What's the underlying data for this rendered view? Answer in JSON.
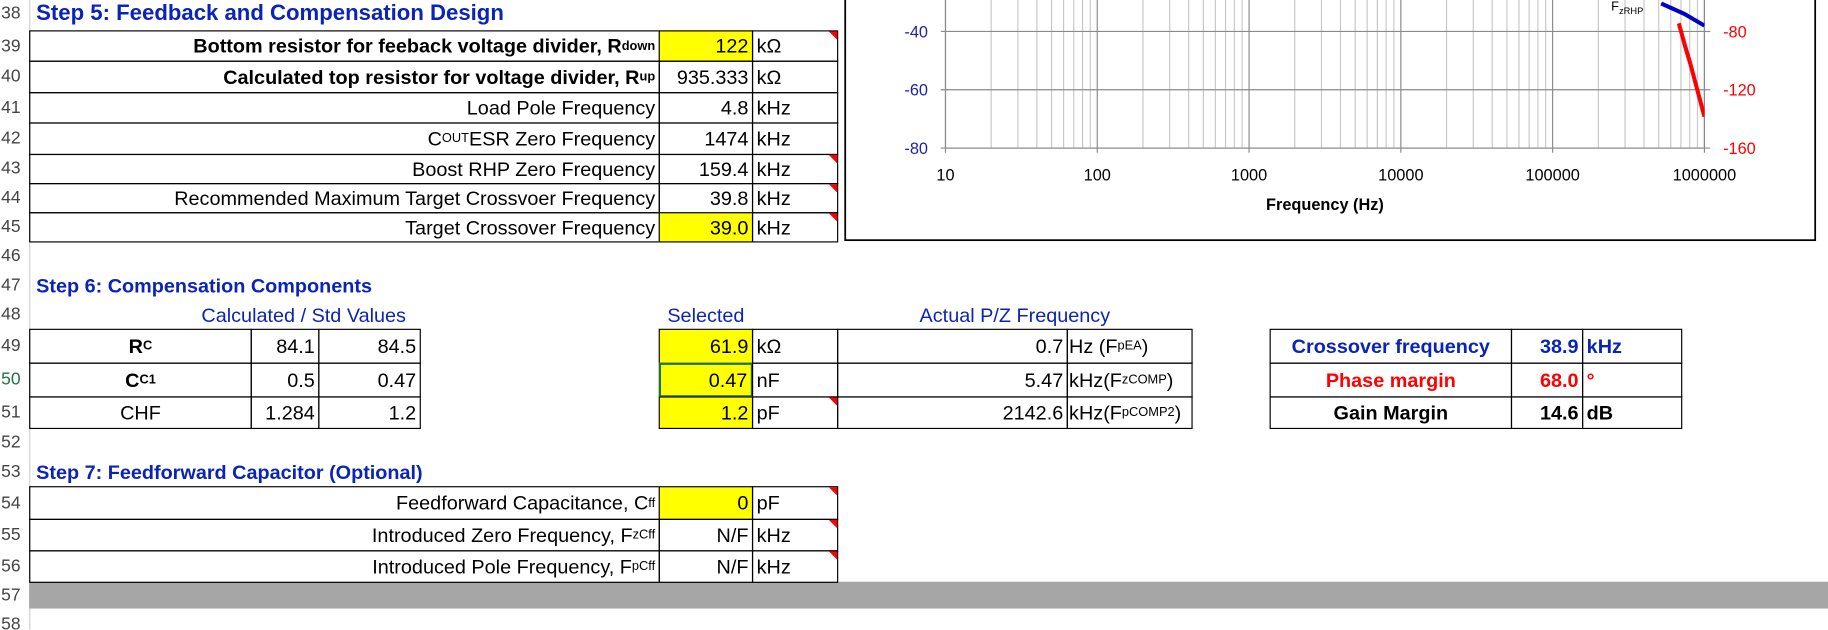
{
  "row_numbers": [
    "38",
    "39",
    "40",
    "41",
    "42",
    "43",
    "44",
    "45",
    "46",
    "47",
    "48",
    "49",
    "50",
    "51",
    "52",
    "53",
    "54",
    "55",
    "56",
    "57",
    "58"
  ],
  "step5": {
    "title": "Step 5: Feedback and Compensation Design",
    "rows": [
      {
        "label": [
          "Bottom resistor for feeback voltage divider, R",
          "down"
        ],
        "value": "122",
        "unit": "kΩ"
      },
      {
        "label": [
          "Calculated top resistor for voltage divider,  R",
          "up"
        ],
        "value": "935.333",
        "unit": "kΩ"
      },
      {
        "label": [
          "Load Pole Frequency"
        ],
        "value": "4.8",
        "unit": "kHz"
      },
      {
        "label": [
          "C",
          "OUT",
          " ESR Zero Frequency"
        ],
        "value": "1474",
        "unit": "kHz"
      },
      {
        "label": [
          "Boost RHP Zero Frequency"
        ],
        "value": "159.4",
        "unit": "kHz"
      },
      {
        "label": [
          "Recommended Maximum Target Crossvoer Frequency"
        ],
        "value": "39.8",
        "unit": "kHz"
      },
      {
        "label": [
          "Target Crossover Frequency"
        ],
        "value": "39.0",
        "unit": "kHz"
      }
    ]
  },
  "step6": {
    "title": "Step 6: Compensation Components",
    "headers": [
      "Calculated / Std Values",
      "Selected",
      "Actual P/Z Frequency"
    ],
    "rows": [
      {
        "name": [
          "R",
          "C"
        ],
        "calculated": "84.1",
        "standard": "84.5",
        "selected": "61.9",
        "unit": "kΩ",
        "actual": "0.7",
        "actual_unit": [
          "Hz (F",
          "pEA",
          ")"
        ]
      },
      {
        "name": [
          "C",
          "C1"
        ],
        "calculated": "0.5",
        "standard": "0.47",
        "selected": "0.47",
        "unit": "nF",
        "actual": "5.47",
        "actual_unit": [
          "kHz(F",
          "zCOMP",
          ")"
        ]
      },
      {
        "name": [
          "CHF"
        ],
        "calculated": "1.284",
        "standard": "1.2",
        "selected": "1.2",
        "unit": "pF",
        "actual": "2142.6",
        "actual_unit": [
          "kHz(F",
          "pCOMP2",
          ")"
        ]
      }
    ]
  },
  "results": [
    {
      "label": "Crossover frequency",
      "value": "38.9",
      "unit": "kHz"
    },
    {
      "label": "Phase margin",
      "value": "68.0",
      "unit": "°"
    },
    {
      "label": "Gain Margin",
      "value": "14.6",
      "unit": "dB"
    }
  ],
  "step7": {
    "title": "Step 7: Feedforward Capacitor (Optional)",
    "rows": [
      {
        "label": [
          "Feedforward Capacitance, C",
          "ff"
        ],
        "value": "0",
        "unit": "pF"
      },
      {
        "label": [
          "Introduced Zero Frequency, F",
          "zCff"
        ],
        "value": "N/F",
        "unit": "kHz"
      },
      {
        "label": [
          "Introduced Pole Frequency, F",
          "pCff"
        ],
        "value": "N/F",
        "unit": "kHz"
      }
    ]
  },
  "chart_data": {
    "type": "line",
    "x_label": "Frequency (Hz)",
    "annotation": [
      "F",
      "zRHP"
    ],
    "log_x": true,
    "grid": true,
    "xlim": [
      10,
      1000000
    ],
    "xticks": [
      10,
      100,
      1000,
      10000,
      100000,
      1000000
    ],
    "ylim": [
      -80,
      -29.2
    ],
    "yticks": [
      -40,
      -60,
      -80
    ],
    "y2lim": [
      -160,
      -58.4
    ],
    "y2ticks": [
      -80,
      -120,
      -160
    ],
    "series": [
      {
        "color": "#0000c0",
        "x": [
          519000,
          740000,
          1000000
        ],
        "values": [
          -30.4,
          -34,
          -38
        ]
      },
      {
        "color": "#ff0000",
        "axis": "y2",
        "x": [
          678000,
          740000,
          809000,
          1000000
        ],
        "values": [
          -74.4,
          -88.8,
          -102.4,
          -138.4
        ]
      }
    ]
  }
}
